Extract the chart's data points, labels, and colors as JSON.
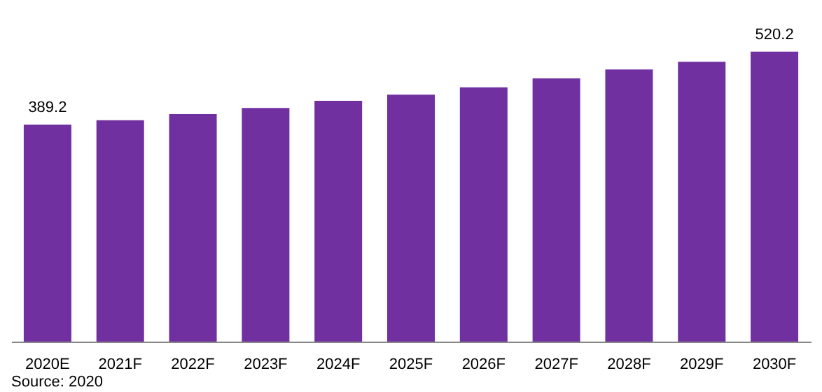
{
  "chart_data": {
    "type": "bar",
    "categories": [
      "2020E",
      "2021F",
      "2022F",
      "2023F",
      "2024F",
      "2025F",
      "2026F",
      "2027F",
      "2028F",
      "2029F",
      "2030F"
    ],
    "values": [
      389.2,
      397,
      408,
      419,
      432,
      443,
      456,
      472,
      488,
      502,
      520.2
    ],
    "value_labels": [
      "389.2",
      null,
      null,
      null,
      null,
      null,
      null,
      null,
      null,
      null,
      "520.2"
    ],
    "color": "#7030a0",
    "tick_labels": "x",
    "grid": false,
    "annotations": [
      "Source: 2020"
    ]
  }
}
